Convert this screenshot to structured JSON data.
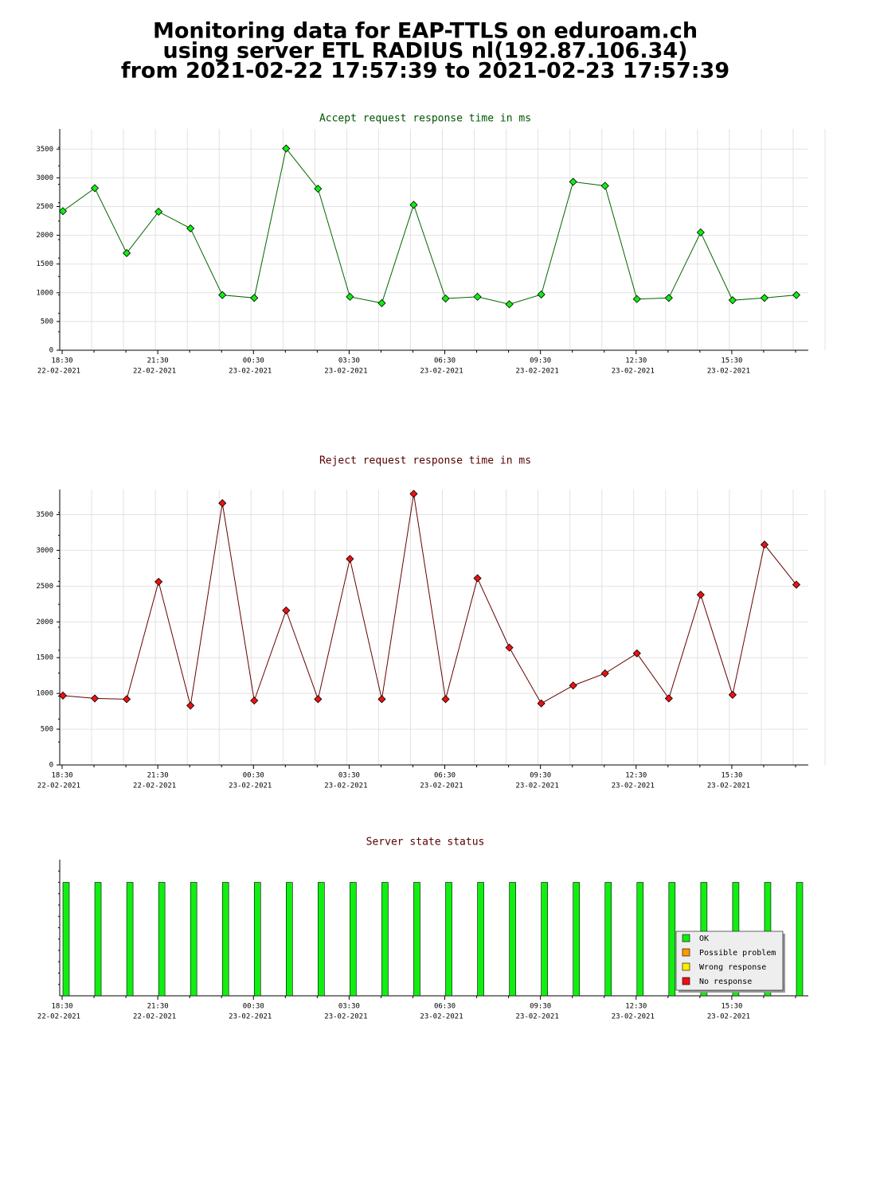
{
  "header": {
    "lines": [
      "Monitoring data for EAP-TTLS on eduroam.ch",
      "using server ETL RADIUS nl(192.87.106.34)",
      "from 2021-02-22 17:57:39 to 2021-02-23 17:57:39"
    ]
  },
  "chart_data": [
    {
      "type": "line",
      "title": "Accept request response time in ms",
      "title_color": "#005500",
      "categories": [
        [
          "18:30",
          "22-02-2021"
        ],
        null,
        null,
        [
          "21:30",
          "22-02-2021"
        ],
        null,
        null,
        [
          "00:30",
          "23-02-2021"
        ],
        null,
        null,
        [
          "03:30",
          "23-02-2021"
        ],
        null,
        null,
        [
          "06:30",
          "23-02-2021"
        ],
        null,
        null,
        [
          "09:30",
          "23-02-2021"
        ],
        null,
        null,
        [
          "12:30",
          "23-02-2021"
        ],
        null,
        null,
        [
          "15:30",
          "23-02-2021"
        ],
        null,
        null
      ],
      "series": [
        {
          "name": "Accept",
          "color": "#006600",
          "marker_color": "#11ee11",
          "values": [
            2420,
            2820,
            1690,
            2410,
            2120,
            960,
            910,
            3510,
            2810,
            930,
            820,
            2530,
            900,
            930,
            800,
            970,
            2930,
            2860,
            890,
            910,
            2050,
            870,
            910,
            960
          ]
        }
      ],
      "ylim": [
        0,
        3850
      ],
      "yticks": [
        0,
        500,
        1000,
        1500,
        2000,
        2500,
        3000,
        3500
      ],
      "grid": true
    },
    {
      "type": "line",
      "title": "Reject request response time in ms",
      "title_color": "#550000",
      "categories": [
        [
          "18:30",
          "22-02-2021"
        ],
        null,
        null,
        [
          "21:30",
          "22-02-2021"
        ],
        null,
        null,
        [
          "00:30",
          "23-02-2021"
        ],
        null,
        null,
        [
          "03:30",
          "23-02-2021"
        ],
        null,
        null,
        [
          "06:30",
          "23-02-2021"
        ],
        null,
        null,
        [
          "09:30",
          "23-02-2021"
        ],
        null,
        null,
        [
          "12:30",
          "23-02-2021"
        ],
        null,
        null,
        [
          "15:30",
          "23-02-2021"
        ],
        null,
        null
      ],
      "series": [
        {
          "name": "Reject",
          "color": "#660000",
          "marker_color": "#ee1111",
          "values": [
            970,
            930,
            920,
            2560,
            830,
            3660,
            900,
            2160,
            920,
            2880,
            920,
            3790,
            920,
            2610,
            1640,
            860,
            1110,
            1280,
            1560,
            930,
            2380,
            980,
            3080,
            2520
          ]
        }
      ],
      "ylim": [
        0,
        3850
      ],
      "yticks": [
        0,
        500,
        1000,
        1500,
        2000,
        2500,
        3000,
        3500
      ],
      "grid": true
    },
    {
      "type": "bar",
      "title": "Server state status",
      "title_color": "#550000",
      "categories": [
        [
          "18:30",
          "22-02-2021"
        ],
        null,
        null,
        [
          "21:30",
          "22-02-2021"
        ],
        null,
        null,
        [
          "00:30",
          "23-02-2021"
        ],
        null,
        null,
        [
          "03:30",
          "23-02-2021"
        ],
        null,
        null,
        [
          "06:30",
          "23-02-2021"
        ],
        null,
        null,
        [
          "09:30",
          "23-02-2021"
        ],
        null,
        null,
        [
          "12:30",
          "23-02-2021"
        ],
        null,
        null,
        [
          "15:30",
          "23-02-2021"
        ],
        null,
        null
      ],
      "series": [
        {
          "name": "OK",
          "color": "#11ee11",
          "values": [
            1,
            1,
            1,
            1,
            1,
            1,
            1,
            1,
            1,
            1,
            1,
            1,
            1,
            1,
            1,
            1,
            1,
            1,
            1,
            1,
            1,
            1,
            1,
            1
          ]
        },
        {
          "name": "Possible problem",
          "color": "#ff9900",
          "values": [
            0,
            0,
            0,
            0,
            0,
            0,
            0,
            0,
            0,
            0,
            0,
            0,
            0,
            0,
            0,
            0,
            0,
            0,
            0,
            0,
            0,
            0,
            0,
            0
          ]
        },
        {
          "name": "Wrong response",
          "color": "#ffee00",
          "values": [
            0,
            0,
            0,
            0,
            0,
            0,
            0,
            0,
            0,
            0,
            0,
            0,
            0,
            0,
            0,
            0,
            0,
            0,
            0,
            0,
            0,
            0,
            0,
            0
          ]
        },
        {
          "name": "No response",
          "color": "#ee1111",
          "values": [
            0,
            0,
            0,
            0,
            0,
            0,
            0,
            0,
            0,
            0,
            0,
            0,
            0,
            0,
            0,
            0,
            0,
            0,
            0,
            0,
            0,
            0,
            0,
            0
          ]
        }
      ],
      "ylim": [
        0,
        1.2
      ],
      "legend": "lower right"
    }
  ]
}
